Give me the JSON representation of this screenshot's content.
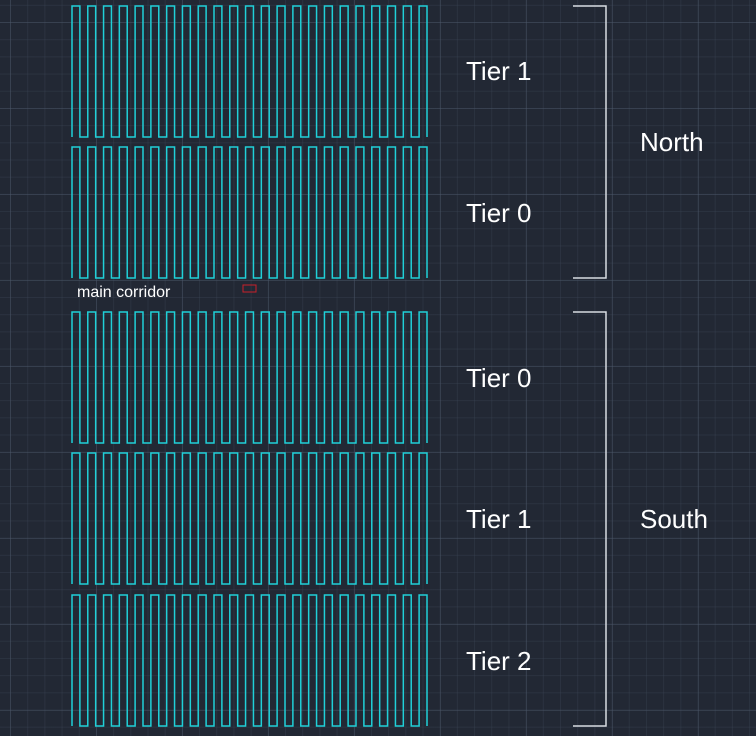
{
  "colors": {
    "background": "#222834",
    "slot_stroke": "#20d0d8",
    "bracket_stroke": "#d8dce2",
    "marker_stroke": "#c8202a",
    "text": "#ffffff"
  },
  "zones": [
    {
      "name": "North",
      "tiers": [
        "Tier 1",
        "Tier 0"
      ]
    },
    {
      "name": "South",
      "tiers": [
        "Tier 0",
        "Tier 1",
        "Tier 2"
      ]
    }
  ],
  "slots_per_row": 23,
  "corridor": {
    "label": "main corridor"
  }
}
